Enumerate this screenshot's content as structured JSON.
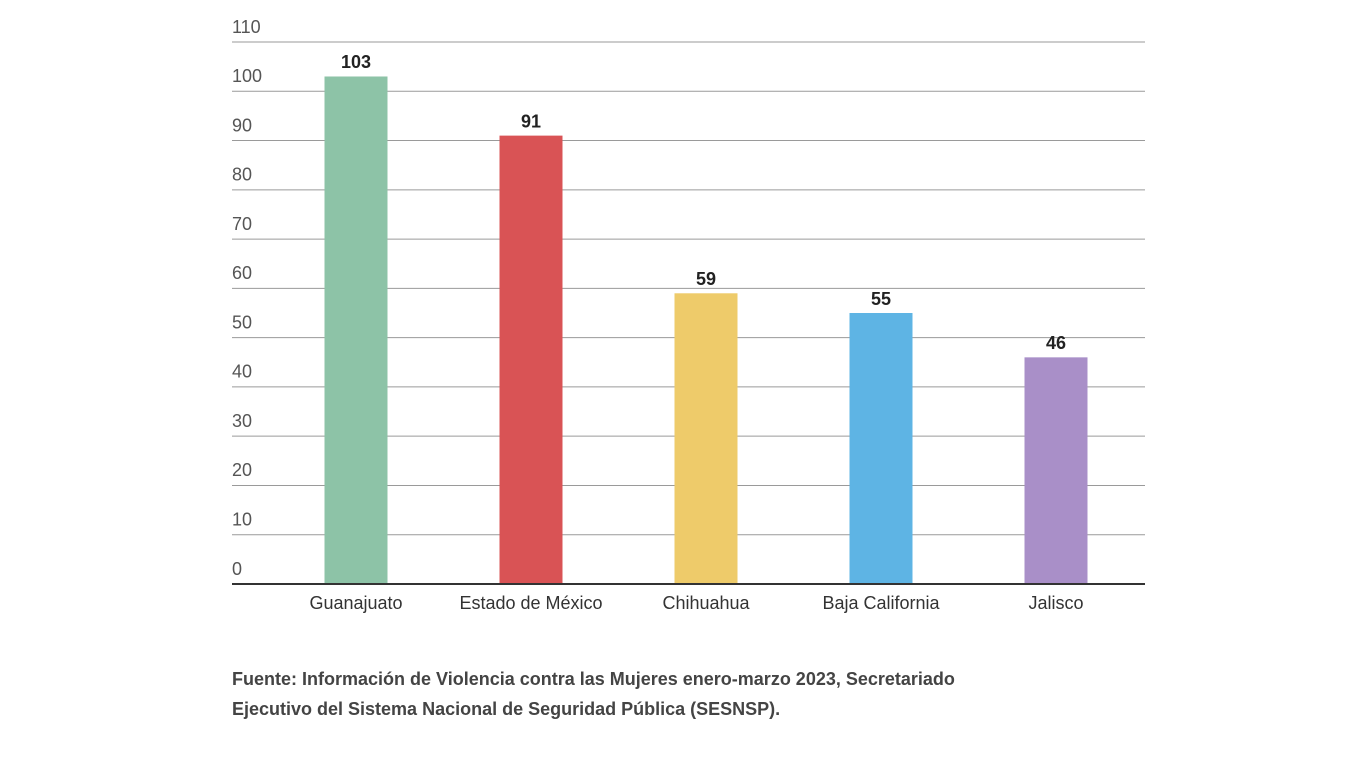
{
  "chart_data": {
    "type": "bar",
    "categories": [
      "Guanajuato",
      "Estado de México",
      "Chihuahua",
      "Baja California",
      "Jalisco"
    ],
    "values": [
      103,
      91,
      59,
      55,
      46
    ],
    "colors": [
      "#8dc3a7",
      "#d95355",
      "#eecb6a",
      "#5eb4e4",
      "#a98fc8"
    ],
    "ylim": [
      0,
      110
    ],
    "yticks": [
      0,
      10,
      20,
      30,
      40,
      50,
      60,
      70,
      80,
      90,
      100,
      110
    ],
    "grid": true,
    "source": [
      "Fuente: Información de Violencia contra las Mujeres enero-marzo 2023, Secretariado",
      "Ejecutivo del Sistema Nacional de Seguridad Pública (SESNSP)."
    ]
  }
}
